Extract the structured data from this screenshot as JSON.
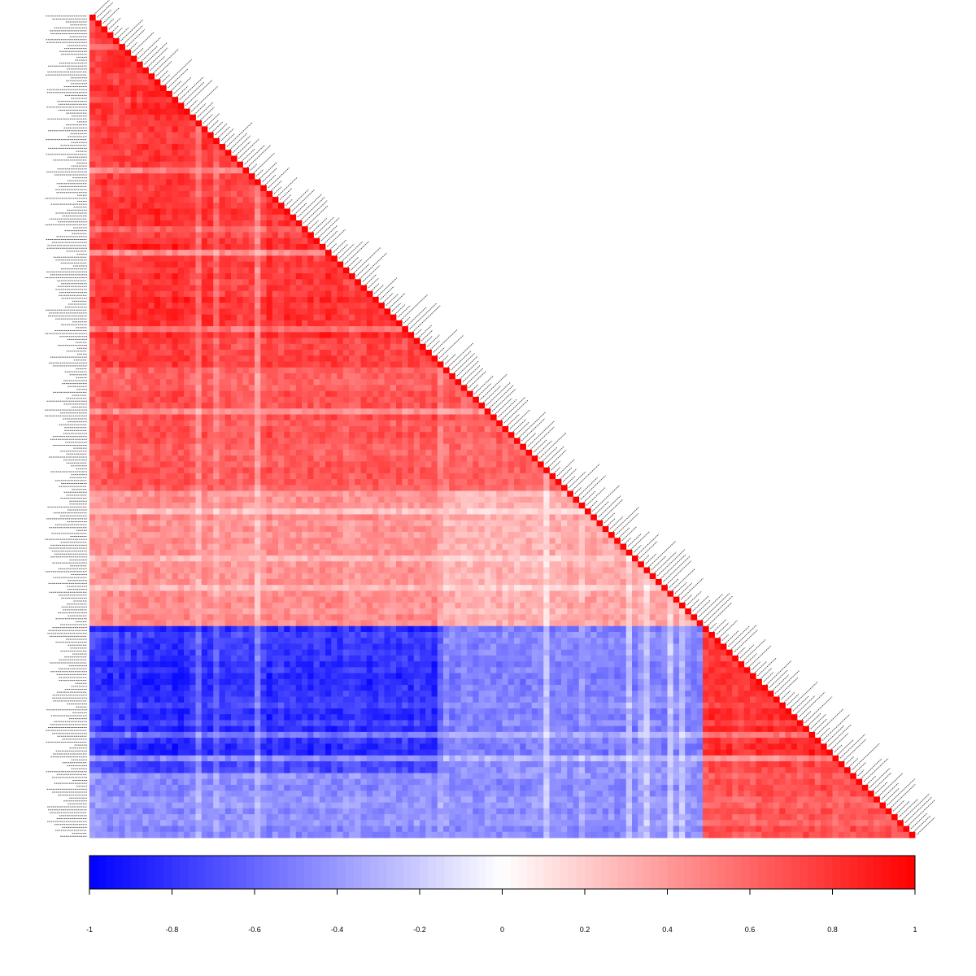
{
  "chart_data": {
    "type": "heatmap",
    "layout": "lower-triangular correlation matrix",
    "variable_labels": "present but illegible (several hundred variables; tiny rotated labels along the diagonal and left edge)",
    "matrix_size_approx": 300,
    "value_range": [
      -1,
      1
    ],
    "colorscale": [
      {
        "value": -1,
        "color": "#0000ff"
      },
      {
        "value": 0,
        "color": "#ffffff"
      },
      {
        "value": 1,
        "color": "#ff0000"
      }
    ],
    "colorbar": {
      "placement": "bottom",
      "ticks": [
        -1,
        -0.8,
        -0.6,
        -0.4,
        -0.2,
        0,
        0.2,
        0.4,
        0.6,
        0.8,
        1
      ],
      "tick_labels": [
        "-1",
        "-0.8",
        "-0.6",
        "-0.4",
        "-0.2",
        "0",
        "0.2",
        "0.4",
        "0.6",
        "0.8",
        "1"
      ]
    },
    "blocks": [
      {
        "rows": [
          0.0,
          0.43
        ],
        "cols": [
          0.0,
          0.43
        ],
        "approx_value": 0.9
      },
      {
        "rows": [
          0.43,
          0.58
        ],
        "cols": [
          0.0,
          0.43
        ],
        "approx_value": 0.75
      },
      {
        "rows": [
          0.43,
          0.58
        ],
        "cols": [
          0.43,
          0.58
        ],
        "approx_value": 0.7
      },
      {
        "rows": [
          0.58,
          0.74
        ],
        "cols": [
          0.0,
          0.43
        ],
        "approx_value": 0.5
      },
      {
        "rows": [
          0.58,
          0.74
        ],
        "cols": [
          0.43,
          0.58
        ],
        "approx_value": 0.35
      },
      {
        "rows": [
          0.58,
          0.74
        ],
        "cols": [
          0.58,
          0.74
        ],
        "approx_value": 0.4
      },
      {
        "rows": [
          0.74,
          0.92
        ],
        "cols": [
          0.0,
          0.43
        ],
        "approx_value": -0.9
      },
      {
        "rows": [
          0.74,
          0.92
        ],
        "cols": [
          0.43,
          0.74
        ],
        "approx_value": -0.55
      },
      {
        "rows": [
          0.74,
          0.92
        ],
        "cols": [
          0.74,
          0.92
        ],
        "approx_value": 0.9
      },
      {
        "rows": [
          0.92,
          1.0
        ],
        "cols": [
          0.0,
          0.74
        ],
        "approx_value": -0.5
      },
      {
        "rows": [
          0.92,
          1.0
        ],
        "cols": [
          0.74,
          1.0
        ],
        "approx_value": 0.75
      }
    ]
  }
}
